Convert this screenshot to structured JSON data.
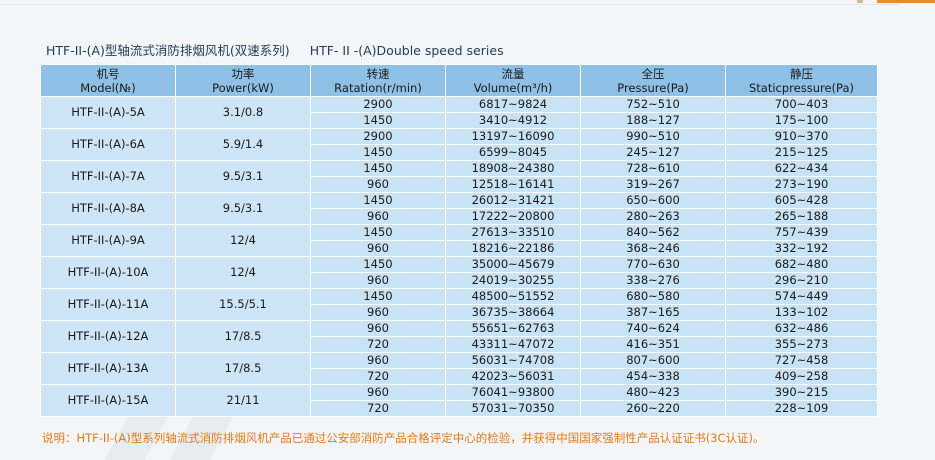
{
  "header": {
    "title_cn": "HTF-II-(A)型轴流式消防排烟风机(双速系列)",
    "title_en": "HTF- II -(A)Double speed series"
  },
  "table": {
    "columns": [
      {
        "cn": "机号",
        "en": "Model(№)"
      },
      {
        "cn": "功率",
        "en": "Power(kW)"
      },
      {
        "cn": "转速",
        "en": "Ratation(r/min)"
      },
      {
        "cn": "流量",
        "en": "Volume(m³/h)"
      },
      {
        "cn": "全压",
        "en": "Pressure(Pa)"
      },
      {
        "cn": "静压",
        "en": "Staticpressure(Pa)"
      }
    ],
    "models": [
      {
        "model": "HTF-II-(A)-5A",
        "power": "3.1/0.8",
        "rows": [
          {
            "speed": "2900",
            "volume": "6817~9824",
            "pressure": "752~510",
            "static": "700~403"
          },
          {
            "speed": "1450",
            "volume": "3410~4912",
            "pressure": "188~127",
            "static": "175~100"
          }
        ]
      },
      {
        "model": "HTF-II-(A)-6A",
        "power": "5.9/1.4",
        "rows": [
          {
            "speed": "2900",
            "volume": "13197~16090",
            "pressure": "990~510",
            "static": "910~370"
          },
          {
            "speed": "1450",
            "volume": "6599~8045",
            "pressure": "245~127",
            "static": "215~125"
          }
        ]
      },
      {
        "model": "HTF-II-(A)-7A",
        "power": "9.5/3.1",
        "rows": [
          {
            "speed": "1450",
            "volume": "18908~24380",
            "pressure": "728~610",
            "static": "622~434"
          },
          {
            "speed": "960",
            "volume": "12518~16141",
            "pressure": "319~267",
            "static": "273~190"
          }
        ]
      },
      {
        "model": "HTF-II-(A)-8A",
        "power": "9.5/3.1",
        "rows": [
          {
            "speed": "1450",
            "volume": "26012~31421",
            "pressure": "650~600",
            "static": "605~428"
          },
          {
            "speed": "960",
            "volume": "17222~20800",
            "pressure": "280~263",
            "static": "265~188"
          }
        ]
      },
      {
        "model": "HTF-II-(A)-9A",
        "power": "12/4",
        "rows": [
          {
            "speed": "1450",
            "volume": "27613~33510",
            "pressure": "840~562",
            "static": "757~439"
          },
          {
            "speed": "960",
            "volume": "18216~22186",
            "pressure": "368~246",
            "static": "332~192"
          }
        ]
      },
      {
        "model": "HTF-II-(A)-10A",
        "power": "12/4",
        "rows": [
          {
            "speed": "1450",
            "volume": "35000~45679",
            "pressure": "770~630",
            "static": "682~480"
          },
          {
            "speed": "960",
            "volume": "24019~30255",
            "pressure": "338~276",
            "static": "296~210"
          }
        ]
      },
      {
        "model": "HTF-II-(A)-11A",
        "power": "15.5/5.1",
        "rows": [
          {
            "speed": "1450",
            "volume": "48500~51552",
            "pressure": "680~580",
            "static": "574~449"
          },
          {
            "speed": "960",
            "volume": "36735~38664",
            "pressure": "387~165",
            "static": "133~102"
          }
        ]
      },
      {
        "model": "HTF-II-(A)-12A",
        "power": "17/8.5",
        "rows": [
          {
            "speed": "960",
            "volume": "55651~62763",
            "pressure": "740~624",
            "static": "632~486"
          },
          {
            "speed": "720",
            "volume": "43311~47072",
            "pressure": "416~351",
            "static": "355~273"
          }
        ]
      },
      {
        "model": "HTF-II-(A)-13A",
        "power": "17/8.5",
        "rows": [
          {
            "speed": "960",
            "volume": "56031~74708",
            "pressure": "807~600",
            "static": "727~458"
          },
          {
            "speed": "720",
            "volume": "42023~56031",
            "pressure": "454~338",
            "static": "409~258"
          }
        ]
      },
      {
        "model": "HTF-II-(A)-15A",
        "power": "21/11",
        "rows": [
          {
            "speed": "960",
            "volume": "76041~93800",
            "pressure": "480~423",
            "static": "390~215"
          },
          {
            "speed": "720",
            "volume": "57031~70350",
            "pressure": "260~220",
            "static": "228~109"
          }
        ]
      }
    ]
  },
  "note": "说明：HTF-II-(A)型系列轴流式消防排烟风机产品已通过公安部消防产品合格评定中心的检验，并获得中国国家强制性产品认证证书(3C认证)。",
  "colors": {
    "header_bg": "#8fc1e6",
    "cell_bg": "#c8e2f6",
    "note": "#e07a18",
    "title": "#1d3b5c"
  }
}
